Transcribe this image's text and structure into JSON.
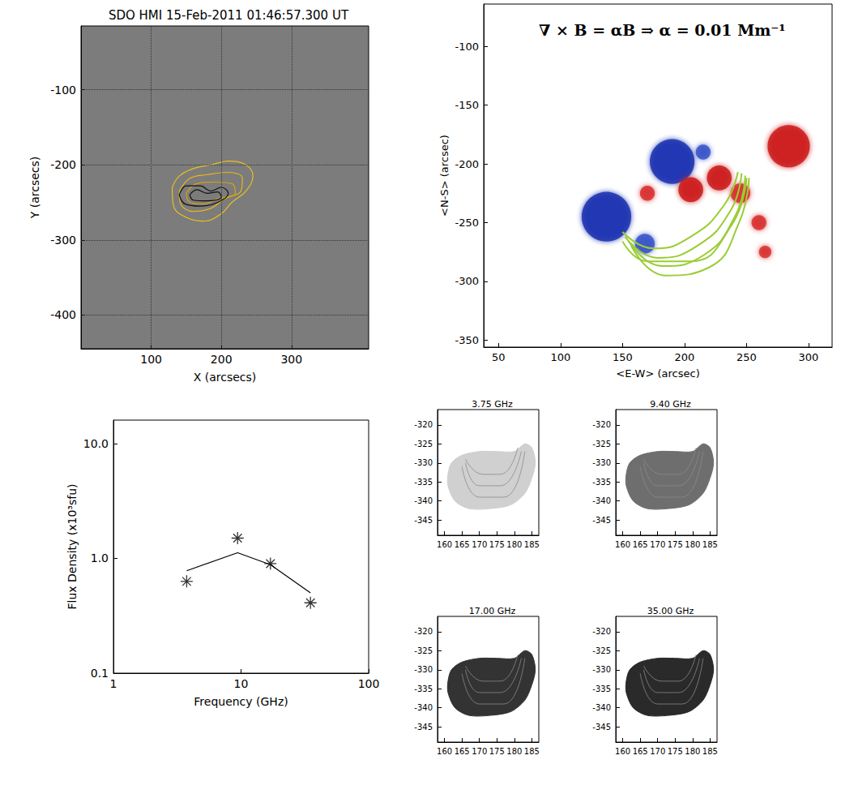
{
  "chart_data": [
    {
      "type": "image_map",
      "title": "SDO HMI 15-Feb-2011 01:46:57.300 UT",
      "x_label": "X (arcsecs)",
      "y_label": "Y (arcsecs)",
      "xlim": [
        0,
        410
      ],
      "ylim": [
        -445,
        -15
      ],
      "xticks": [
        100,
        200,
        300
      ],
      "yticks": [
        -400,
        -300,
        -200,
        -100
      ],
      "grid": true,
      "contours": [
        {
          "color": "#e8c020",
          "points": [
            [
              130,
              -230
            ],
            [
              140,
              -215
            ],
            [
              160,
              -205
            ],
            [
              185,
              -200
            ],
            [
              210,
              -195
            ],
            [
              235,
              -200
            ],
            [
              245,
              -215
            ],
            [
              235,
              -235
            ],
            [
              215,
              -250
            ],
            [
              200,
              -265
            ],
            [
              175,
              -275
            ],
            [
              150,
              -270
            ],
            [
              132,
              -255
            ]
          ]
        },
        {
          "color": "#e8b818",
          "points": [
            [
              140,
              -235
            ],
            [
              155,
              -218
            ],
            [
              180,
              -213
            ],
            [
              210,
              -210
            ],
            [
              230,
              -218
            ],
            [
              228,
              -235
            ],
            [
              205,
              -245
            ],
            [
              185,
              -258
            ],
            [
              160,
              -262
            ],
            [
              142,
              -252
            ]
          ]
        },
        {
          "color": "#d8a010",
          "points": [
            [
              150,
              -238
            ],
            [
              165,
              -225
            ],
            [
              190,
              -223
            ],
            [
              215,
              -225
            ],
            [
              220,
              -238
            ],
            [
              195,
              -245
            ],
            [
              175,
              -252
            ],
            [
              155,
              -250
            ]
          ]
        },
        {
          "color": "#111111",
          "points": [
            [
              140,
              -240
            ],
            [
              150,
              -228
            ],
            [
              170,
              -228
            ],
            [
              185,
              -235
            ],
            [
              200,
              -230
            ],
            [
              210,
              -238
            ],
            [
              195,
              -250
            ],
            [
              170,
              -255
            ],
            [
              148,
              -252
            ]
          ]
        },
        {
          "color": "#111111",
          "points": [
            [
              155,
              -240
            ],
            [
              165,
              -233
            ],
            [
              180,
              -238
            ],
            [
              195,
              -236
            ],
            [
              200,
              -243
            ],
            [
              180,
              -248
            ],
            [
              160,
              -247
            ]
          ]
        }
      ]
    },
    {
      "type": "magnetogram",
      "title": "∇ × B = αB ⇒ α = 0.01 Mm⁻¹",
      "x_label": "<E-W> (arcsec)",
      "y_label": "<N-S> (arcsec)",
      "xlim": [
        38,
        319
      ],
      "ylim": [
        -356,
        -64
      ],
      "xticks": [
        50,
        100,
        150,
        200,
        250,
        300
      ],
      "yticks": [
        -350,
        -300,
        -250,
        -200,
        -150,
        -100
      ],
      "regions": [
        {
          "x": 190,
          "y": -198,
          "r": 18,
          "color": "#1a33b0"
        },
        {
          "x": 137,
          "y": -245,
          "r": 20,
          "color": "#1a33b0"
        },
        {
          "x": 168,
          "y": -268,
          "r": 8,
          "color": "#3a55c8"
        },
        {
          "x": 215,
          "y": -190,
          "r": 6,
          "color": "#3a55c8"
        },
        {
          "x": 284,
          "y": -185,
          "r": 17,
          "color": "#cc1a1a"
        },
        {
          "x": 205,
          "y": -222,
          "r": 10,
          "color": "#cc1a1a"
        },
        {
          "x": 228,
          "y": -212,
          "r": 10,
          "color": "#cc1a1a"
        },
        {
          "x": 245,
          "y": -225,
          "r": 8,
          "color": "#d83030"
        },
        {
          "x": 170,
          "y": -225,
          "r": 6,
          "color": "#d83030"
        },
        {
          "x": 260,
          "y": -250,
          "r": 6,
          "color": "#d83030"
        },
        {
          "x": 265,
          "y": -275,
          "r": 5,
          "color": "#d83030"
        }
      ],
      "field_lines": {
        "color": "#9acd32",
        "lines": [
          [
            [
              150,
              -258
            ],
            [
              175,
              -272
            ],
            [
              205,
              -262
            ],
            [
              232,
              -235
            ],
            [
              243,
              -207
            ]
          ],
          [
            [
              152,
              -262
            ],
            [
              178,
              -280
            ],
            [
              210,
              -270
            ],
            [
              237,
              -240
            ],
            [
              246,
              -208
            ]
          ],
          [
            [
              155,
              -266
            ],
            [
              182,
              -287
            ],
            [
              215,
              -278
            ],
            [
              241,
              -244
            ],
            [
              249,
              -210
            ]
          ],
          [
            [
              150,
              -266
            ],
            [
              170,
              -283
            ],
            [
              205,
              -283
            ],
            [
              238,
              -252
            ],
            [
              250,
              -212
            ]
          ],
          [
            [
              157,
              -270
            ],
            [
              185,
              -295
            ],
            [
              220,
              -288
            ],
            [
              244,
              -250
            ],
            [
              252,
              -212
            ]
          ]
        ]
      }
    },
    {
      "type": "line_scatter",
      "x_label": "Frequency (GHz)",
      "y_label": "Flux Density (x10³sfu)",
      "log": true,
      "xlim": [
        1,
        100
      ],
      "ylim": [
        0.1,
        16
      ],
      "xticks": [
        1,
        10,
        100
      ],
      "yticks": [
        0.1,
        {
          "value": 1,
          "label": "1.0"
        },
        {
          "value": 10,
          "label": "10.0"
        }
      ],
      "grid": false,
      "series": [
        {
          "type": "scatter",
          "marker": "asterisk",
          "color": "#000000",
          "x": [
            3.75,
            9.4,
            17,
            35
          ],
          "values": [
            0.63,
            1.5,
            0.9,
            0.41
          ]
        },
        {
          "type": "line",
          "color": "#000000",
          "x": [
            3.75,
            9.4,
            17,
            35
          ],
          "values": [
            0.78,
            1.12,
            0.88,
            0.5
          ]
        }
      ]
    },
    {
      "type": "radio_map",
      "title": "3.75 GHz",
      "color": "#d0d0d0",
      "xlim": [
        158,
        187
      ],
      "ylim": [
        -349,
        -316
      ],
      "xticks": [
        160,
        165,
        170,
        175,
        180,
        185
      ],
      "yticks": [
        -345,
        -340,
        -335,
        -330,
        -325,
        -320
      ],
      "outline": [
        [
          162,
          -330
        ],
        [
          165,
          -328
        ],
        [
          170,
          -327
        ],
        [
          175,
          -327
        ],
        [
          180,
          -327
        ],
        [
          183,
          -325
        ],
        [
          185,
          -326
        ],
        [
          186,
          -330
        ],
        [
          185,
          -334
        ],
        [
          183,
          -338
        ],
        [
          179,
          -341
        ],
        [
          173,
          -342
        ],
        [
          167,
          -342
        ],
        [
          163,
          -340
        ],
        [
          161,
          -336
        ],
        [
          161,
          -333
        ]
      ],
      "loops": [
        [
          [
            166,
            -330
          ],
          [
            170,
            -336
          ],
          [
            176,
            -336
          ],
          [
            182,
            -327
          ]
        ],
        [
          [
            165,
            -331
          ],
          [
            170,
            -339
          ],
          [
            177,
            -339
          ],
          [
            183,
            -327
          ]
        ],
        [
          [
            166,
            -329
          ],
          [
            171,
            -333
          ],
          [
            176,
            -333
          ],
          [
            181,
            -326
          ]
        ]
      ]
    },
    {
      "type": "radio_map",
      "title": "9.40 GHz",
      "color": "#6e6e6e",
      "xlim": [
        158,
        187
      ],
      "ylim": [
        -349,
        -316
      ],
      "xticks": [
        160,
        165,
        170,
        175,
        180,
        185
      ],
      "yticks": [
        -345,
        -340,
        -335,
        -330,
        -325,
        -320
      ],
      "outline": [
        [
          162,
          -330
        ],
        [
          165,
          -328
        ],
        [
          170,
          -327
        ],
        [
          175,
          -327
        ],
        [
          180,
          -327
        ],
        [
          183,
          -325
        ],
        [
          185,
          -326
        ],
        [
          186,
          -330
        ],
        [
          185,
          -334
        ],
        [
          183,
          -338
        ],
        [
          179,
          -341
        ],
        [
          173,
          -342
        ],
        [
          167,
          -342
        ],
        [
          163,
          -340
        ],
        [
          161,
          -336
        ],
        [
          161,
          -333
        ]
      ],
      "loops": [
        [
          [
            166,
            -330
          ],
          [
            170,
            -336
          ],
          [
            176,
            -336
          ],
          [
            182,
            -327
          ]
        ],
        [
          [
            165,
            -331
          ],
          [
            170,
            -339
          ],
          [
            177,
            -339
          ],
          [
            183,
            -327
          ]
        ],
        [
          [
            166,
            -329
          ],
          [
            171,
            -333
          ],
          [
            176,
            -333
          ],
          [
            181,
            -326
          ]
        ]
      ]
    },
    {
      "type": "radio_map",
      "title": "17.00 GHz",
      "color": "#333333",
      "xlim": [
        158,
        187
      ],
      "ylim": [
        -349,
        -316
      ],
      "xticks": [
        160,
        165,
        170,
        175,
        180,
        185
      ],
      "yticks": [
        -345,
        -340,
        -335,
        -330,
        -325,
        -320
      ],
      "outline": [
        [
          162,
          -330
        ],
        [
          165,
          -328
        ],
        [
          170,
          -327
        ],
        [
          175,
          -327
        ],
        [
          180,
          -327
        ],
        [
          183,
          -325
        ],
        [
          185,
          -326
        ],
        [
          186,
          -330
        ],
        [
          185,
          -334
        ],
        [
          183,
          -338
        ],
        [
          179,
          -341
        ],
        [
          173,
          -342
        ],
        [
          167,
          -342
        ],
        [
          163,
          -340
        ],
        [
          161,
          -336
        ],
        [
          161,
          -333
        ]
      ],
      "loops": [
        [
          [
            166,
            -330
          ],
          [
            170,
            -336
          ],
          [
            176,
            -336
          ],
          [
            182,
            -327
          ]
        ],
        [
          [
            165,
            -331
          ],
          [
            170,
            -339
          ],
          [
            177,
            -339
          ],
          [
            183,
            -327
          ]
        ],
        [
          [
            166,
            -329
          ],
          [
            171,
            -333
          ],
          [
            176,
            -333
          ],
          [
            181,
            -326
          ]
        ]
      ]
    },
    {
      "type": "radio_map",
      "title": "35.00 GHz",
      "color": "#2a2a2a",
      "xlim": [
        158,
        187
      ],
      "ylim": [
        -349,
        -316
      ],
      "xticks": [
        160,
        165,
        170,
        175,
        180,
        185
      ],
      "yticks": [
        -345,
        -340,
        -335,
        -330,
        -325,
        -320
      ],
      "outline": [
        [
          162,
          -330
        ],
        [
          165,
          -328
        ],
        [
          170,
          -327
        ],
        [
          175,
          -327
        ],
        [
          180,
          -327
        ],
        [
          183,
          -325
        ],
        [
          185,
          -326
        ],
        [
          186,
          -330
        ],
        [
          185,
          -334
        ],
        [
          183,
          -338
        ],
        [
          179,
          -341
        ],
        [
          173,
          -342
        ],
        [
          167,
          -342
        ],
        [
          163,
          -340
        ],
        [
          161,
          -336
        ],
        [
          161,
          -333
        ]
      ],
      "loops": [
        [
          [
            166,
            -330
          ],
          [
            170,
            -336
          ],
          [
            176,
            -336
          ],
          [
            182,
            -327
          ]
        ],
        [
          [
            165,
            -331
          ],
          [
            170,
            -339
          ],
          [
            177,
            -339
          ],
          [
            183,
            -327
          ]
        ],
        [
          [
            166,
            -329
          ],
          [
            171,
            -333
          ],
          [
            176,
            -333
          ],
          [
            181,
            -326
          ]
        ]
      ]
    }
  ]
}
